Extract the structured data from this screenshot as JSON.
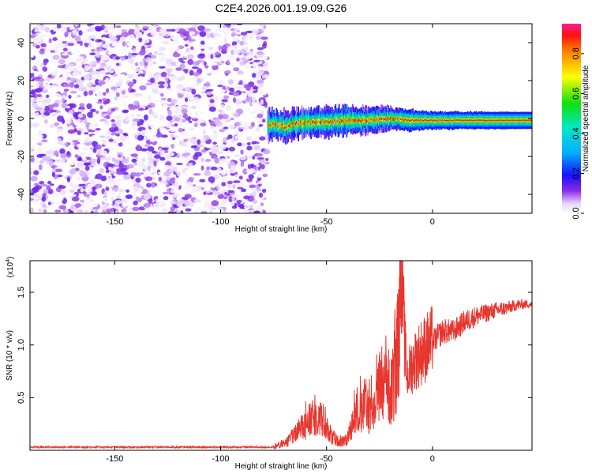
{
  "chart_data": [
    {
      "type": "heatmap",
      "title": "C2E4.2026.001.19.09.G26",
      "xlabel": "Height of straight line (km)",
      "ylabel": "Frequency (Hz)",
      "xlim": [
        -190,
        47
      ],
      "ylim": [
        -50,
        50
      ],
      "xticks": [
        -150,
        -100,
        -50,
        0
      ],
      "yticks": [
        -40,
        -20,
        0,
        20,
        40
      ],
      "colorbar": {
        "label": "Normalized spectral amplitude",
        "range": [
          0,
          0.95
        ],
        "ticks": [
          "0.0",
          "0.2",
          "0.4",
          "0.6",
          "0.8"
        ]
      },
      "regions": [
        {
          "x_range": [
            -190,
            -78
          ],
          "freq_range": [
            -50,
            50
          ],
          "amplitude_range": [
            0.0,
            0.15
          ]
        },
        {
          "x_range": [
            -78,
            47
          ],
          "center_freq": [
            [
              -78,
              -3
            ],
            [
              -70,
              -4
            ],
            [
              -60,
              -2
            ],
            [
              -50,
              -2
            ],
            [
              -40,
              -1
            ],
            [
              -30,
              -1
            ],
            [
              -20,
              0
            ],
            [
              -10,
              -1
            ],
            [
              0,
              -1
            ],
            [
              10,
              -1
            ],
            [
              20,
              -1
            ],
            [
              30,
              -1
            ],
            [
              40,
              -1
            ],
            [
              47,
              -1
            ]
          ],
          "half_width": [
            [
              -78,
              5
            ],
            [
              -60,
              5
            ],
            [
              -40,
              5
            ],
            [
              -20,
              4
            ],
            [
              0,
              3
            ],
            [
              20,
              3
            ],
            [
              47,
              3
            ]
          ],
          "peak_amplitude": 0.9
        }
      ]
    },
    {
      "type": "line",
      "xlabel": "Height of straight line (km)",
      "ylabel": "SNR (10 * v/v)",
      "y_multiplier": "(x10",
      "y_multiplier_exp": "4",
      "y_multiplier_close": ")",
      "xlim": [
        -190,
        47
      ],
      "ylim": [
        0,
        18000
      ],
      "xticks": [
        -150,
        -100,
        -50,
        0
      ],
      "yticks": [
        "0.5",
        "1.0",
        "1.5"
      ],
      "ytick_values": [
        5000,
        10000,
        15000
      ],
      "series": [
        {
          "color": "#e8352e",
          "x": [
            -190,
            -150,
            -100,
            -75,
            -70,
            -65,
            -62,
            -58,
            -55,
            -52,
            -50,
            -48,
            -45,
            -42,
            -40,
            -38,
            -36,
            -34,
            -32,
            -30,
            -28,
            -26,
            -24,
            -22,
            -20,
            -18,
            -16,
            -15,
            -14,
            -13,
            -12,
            -10,
            -8,
            -5,
            0,
            5,
            10,
            15,
            20,
            25,
            30,
            35,
            40,
            45,
            47
          ],
          "y": [
            300,
            300,
            300,
            300,
            600,
            1400,
            2200,
            2800,
            3200,
            3000,
            2200,
            1200,
            900,
            800,
            1000,
            2600,
            3400,
            3800,
            4300,
            3700,
            3900,
            5000,
            5800,
            6000,
            5300,
            6500,
            10800,
            18000,
            14500,
            9800,
            7000,
            7900,
            8700,
            9400,
            10300,
            11300,
            11300,
            12200,
            12700,
            13000,
            13300,
            13500,
            13800,
            13900,
            13800
          ]
        }
      ]
    }
  ]
}
